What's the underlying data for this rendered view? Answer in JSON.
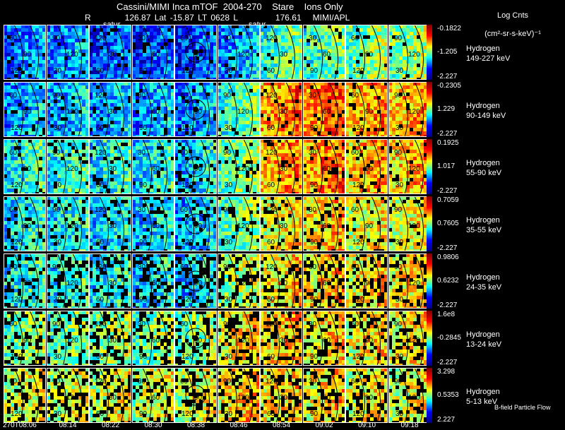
{
  "header": {
    "title": "Cassini/MIMI Inca mTOF  2004-270    Stare    Ions Only",
    "subtitle": "R         126.87 Lat -15.87 LT 0628 L          176.61   MIMI/APL",
    "colorbar_title_line1": "Log Cnts",
    "colorbar_title_line2": "(cm²-sr-s-keV)⁻¹"
  },
  "overlay_labels": [
    "satur",
    "satur"
  ],
  "footer_label": "B-field Particle Flow",
  "chart_data": {
    "type": "heatmap",
    "description_free": true,
    "time_labels": [
      "270T08:06",
      "08:14",
      "08:22",
      "08:30",
      "08:38",
      "08:46",
      "08:54",
      "09:02",
      "09:10",
      "09:18"
    ],
    "rows": [
      {
        "species": "Hydrogen",
        "energy": "149-227 keV",
        "cb_max": "-0.1822",
        "cb_mid": "-1.205",
        "cb_min": "-2.227",
        "intensity": [
          0.25,
          0.28,
          0.22,
          0.2,
          0.2,
          0.3,
          0.45,
          0.45,
          0.5,
          0.52
        ]
      },
      {
        "species": "Hydrogen",
        "energy": "90-149 keV",
        "cb_max": "-0.2305",
        "cb_mid": "1.229",
        "cb_min": "-2.227",
        "intensity": [
          0.3,
          0.32,
          0.3,
          0.3,
          0.28,
          0.45,
          0.75,
          0.78,
          0.72,
          0.72
        ]
      },
      {
        "species": "Hydrogen",
        "energy": "55-90 keV",
        "cb_max": "0.1925",
        "cb_mid": "1.017",
        "cb_min": "-2.227",
        "intensity": [
          0.4,
          0.42,
          0.4,
          0.38,
          0.35,
          0.5,
          0.72,
          0.75,
          0.7,
          0.7
        ]
      },
      {
        "species": "Hydrogen",
        "energy": "35-55 keV",
        "cb_max": "0.7059",
        "cb_mid": "0.7605",
        "cb_min": "-2.227",
        "intensity": [
          0.38,
          0.38,
          0.36,
          0.34,
          0.32,
          0.48,
          0.62,
          0.68,
          0.62,
          0.62
        ]
      },
      {
        "species": "Hydrogen",
        "energy": "24-35 keV",
        "cb_max": "0.9806",
        "cb_mid": "0.6232",
        "cb_min": "-2.227",
        "intensity": [
          0.4,
          0.4,
          0.38,
          0.36,
          0.34,
          0.55,
          0.65,
          0.68,
          0.65,
          0.66
        ]
      },
      {
        "species": "Hydrogen",
        "energy": "13-24 keV",
        "cb_max": "1.6e8",
        "cb_mid": "-0.2845",
        "cb_min": "-2.227",
        "intensity": [
          0.5,
          0.48,
          0.52,
          0.5,
          0.5,
          0.65,
          0.68,
          0.66,
          0.64,
          0.64
        ]
      },
      {
        "species": "Hydrogen",
        "energy": "5-13 keV",
        "cb_max": "3.298",
        "cb_mid": "0.5353",
        "cb_min": "2.227",
        "intensity": [
          0.6,
          0.58,
          0.6,
          0.58,
          0.58,
          0.68,
          0.66,
          0.66,
          0.62,
          0.6
        ]
      }
    ],
    "contour_labels": [
      "30",
      "60",
      "90",
      "120"
    ]
  }
}
